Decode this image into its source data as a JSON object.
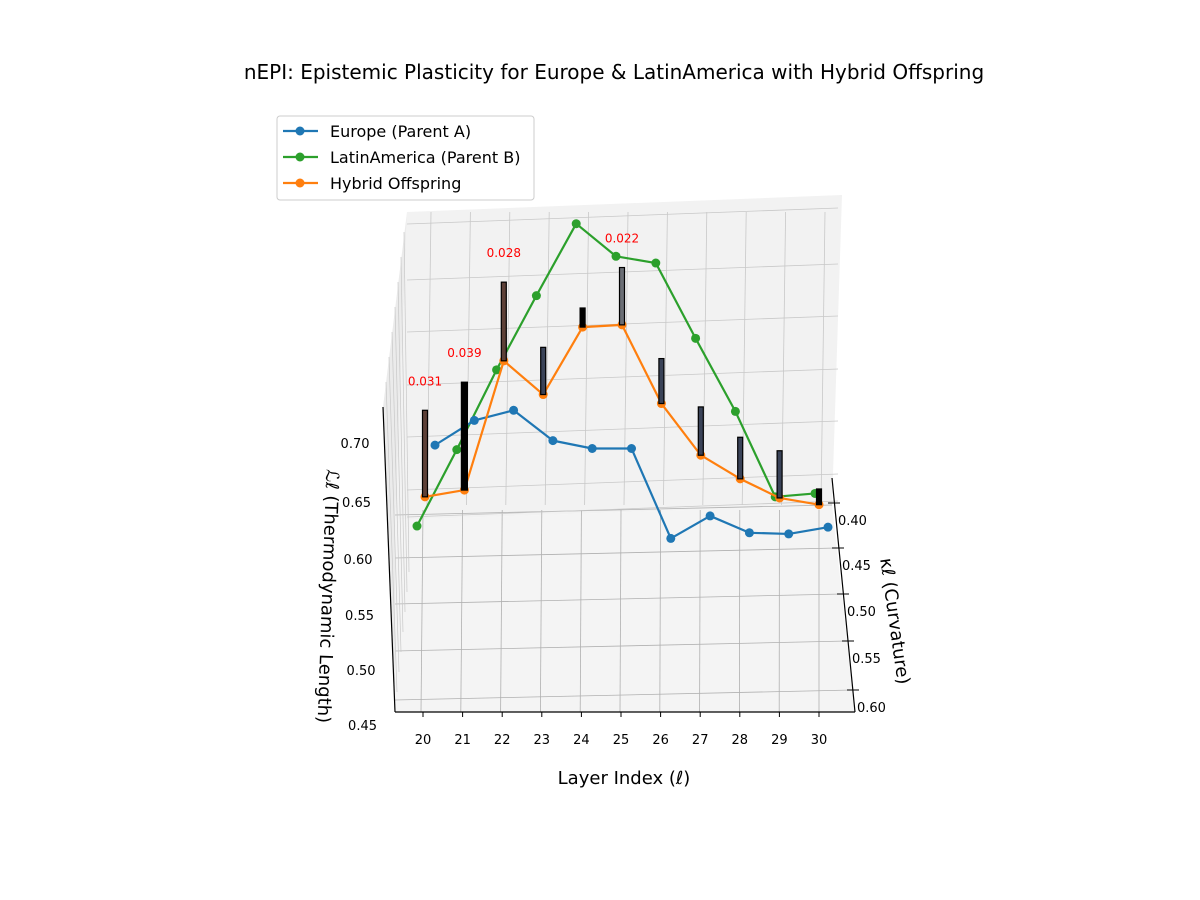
{
  "chart_data": {
    "type": "line3d",
    "title": "nEPI: Epistemic Plasticity for Europe & LatinAmerica with Hybrid Offspring",
    "xlabel": "Layer Index (ℓ)",
    "ylabel": "κℓ (Curvature)",
    "zlabel": "ℒℓ (Thermodynamic Length)",
    "x_ticks": [
      "20",
      "21",
      "22",
      "23",
      "24",
      "25",
      "26",
      "27",
      "28",
      "29",
      "30"
    ],
    "y_ticks": [
      "0.40",
      "0.45",
      "0.50",
      "0.55",
      "0.60"
    ],
    "z_ticks": [
      "0.45",
      "0.50",
      "0.55",
      "0.60",
      "0.65",
      "0.70"
    ],
    "xlim": [
      19.3,
      30.7
    ],
    "ylim": [
      0.38,
      0.6
    ],
    "zlim": [
      0.45,
      0.9
    ],
    "grid": true,
    "legend_position": "top-left",
    "x": [
      20,
      21,
      22,
      23,
      24,
      25,
      26,
      27,
      28,
      29,
      30
    ],
    "series": [
      {
        "name": "Europe (Parent A)",
        "color": "#1f77b4",
        "values": [
          0.699,
          0.721,
          0.73,
          0.703,
          0.696,
          0.696,
          0.616,
          0.636,
          0.621,
          0.62,
          0.626
        ]
      },
      {
        "name": "LatinAmerica (Parent B)",
        "color": "#2ca02c",
        "values": [
          0.627,
          0.695,
          0.766,
          0.832,
          0.896,
          0.867,
          0.861,
          0.794,
          0.729,
          0.653,
          0.656
        ]
      },
      {
        "name": "Hybrid Offspring",
        "color": "#ff7f0e",
        "values": [
          0.653,
          0.659,
          0.774,
          0.744,
          0.804,
          0.806,
          0.736,
          0.69,
          0.669,
          0.652,
          0.646
        ]
      }
    ],
    "plasticity_bars": {
      "base": "Hybrid Offspring",
      "heights": [
        0.077,
        0.096,
        0.07,
        0.042,
        0.017,
        0.051,
        0.04,
        0.043,
        0.037,
        0.042,
        0.014
      ],
      "colors": [
        "#5d4037",
        "#000000",
        "#5d4037",
        "#3a4358",
        "#000000",
        "#6b6e75",
        "#3a4358",
        "#3a4358",
        "#3a4358",
        "#3a4358",
        "#000000"
      ]
    },
    "annotations": [
      {
        "layer": 20,
        "text": "0.031"
      },
      {
        "layer": 21,
        "text": "0.039"
      },
      {
        "layer": 22,
        "text": "0.028"
      },
      {
        "layer": 25,
        "text": "0.022"
      }
    ]
  }
}
